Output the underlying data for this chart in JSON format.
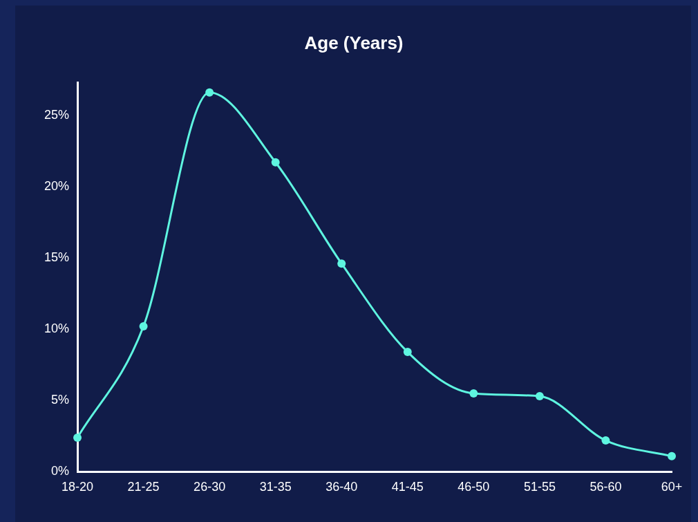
{
  "chart_data": {
    "type": "line",
    "title": "Age (Years)",
    "categories": [
      "18-20",
      "21-25",
      "26-30",
      "31-35",
      "36-40",
      "41-45",
      "46-50",
      "51-55",
      "56-60",
      "60+"
    ],
    "series": [
      {
        "color": "#5ef5e0",
        "values": [
          2.4,
          10.2,
          26.6,
          21.7,
          14.6,
          8.4,
          5.5,
          5.3,
          2.2,
          1.1
        ]
      }
    ],
    "ylim": [
      0,
      27.3
    ],
    "yticks": [
      {
        "value": 0,
        "label": "0%"
      },
      {
        "value": 5,
        "label": "5%"
      },
      {
        "value": 10,
        "label": "10%"
      },
      {
        "value": 15,
        "label": "15%"
      },
      {
        "value": 20,
        "label": "20%"
      },
      {
        "value": 25,
        "label": "25%"
      }
    ],
    "grid": false,
    "legend": false,
    "marker": "circle",
    "line_style": "solid"
  }
}
